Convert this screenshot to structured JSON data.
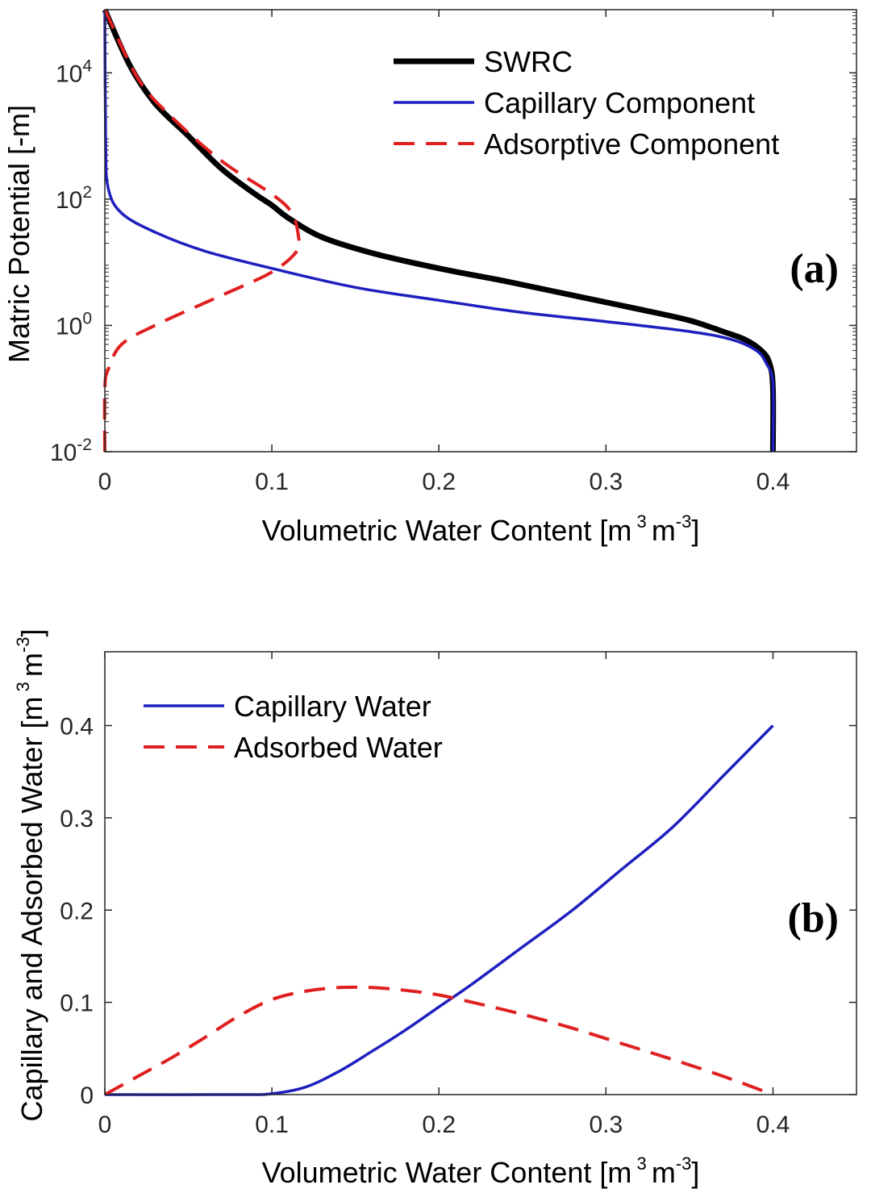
{
  "chart_data": [
    {
      "type": "line",
      "panel_label": "(a)",
      "xlabel": "Volumetric Water Content [m 3 m-3]",
      "ylabel": "Matric Potential [-m]",
      "xlim": [
        0,
        0.45
      ],
      "ylim": [
        0.01,
        100000
      ],
      "yscale": "log",
      "x_ticks": [
        "0",
        "0.1",
        "0.2",
        "0.3",
        "0.4"
      ],
      "y_ticks": [
        {
          "base": "10",
          "exp": "-2",
          "value": 0.01
        },
        {
          "base": "10",
          "exp": "0",
          "value": 1
        },
        {
          "base": "10",
          "exp": "2",
          "value": 100
        },
        {
          "base": "10",
          "exp": "4",
          "value": 10000
        }
      ],
      "legend_position": "top-right",
      "series": [
        {
          "name": "SWRC",
          "color": "#000000",
          "style": "solid",
          "points": [
            [
              0.4,
              0.01
            ],
            [
              0.4,
              0.1
            ],
            [
              0.398,
              0.25
            ],
            [
              0.393,
              0.4
            ],
            [
              0.383,
              0.6
            ],
            [
              0.37,
              0.8
            ],
            [
              0.35,
              1.2
            ],
            [
              0.32,
              1.8
            ],
            [
              0.28,
              3
            ],
            [
              0.24,
              5
            ],
            [
              0.2,
              8
            ],
            [
              0.16,
              14
            ],
            [
              0.13,
              25
            ],
            [
              0.11,
              50
            ],
            [
              0.1,
              80
            ],
            [
              0.09,
              120
            ],
            [
              0.07,
              300
            ],
            [
              0.05,
              1000
            ],
            [
              0.03,
              3300
            ],
            [
              0.015,
              13000
            ],
            [
              0.0,
              100000
            ]
          ]
        },
        {
          "name": "Capillary Component",
          "color": "#1f1fbf",
          "style": "solid",
          "points": [
            [
              0.4,
              0.01
            ],
            [
              0.4,
              0.12
            ],
            [
              0.396,
              0.25
            ],
            [
              0.39,
              0.4
            ],
            [
              0.375,
              0.6
            ],
            [
              0.35,
              0.8
            ],
            [
              0.3,
              1.15
            ],
            [
              0.25,
              1.6
            ],
            [
              0.2,
              2.5
            ],
            [
              0.15,
              4
            ],
            [
              0.1,
              8
            ],
            [
              0.06,
              15
            ],
            [
              0.03,
              30
            ],
            [
              0.01,
              60
            ],
            [
              0.002,
              150
            ],
            [
              0.0005,
              800
            ],
            [
              0.0,
              100000
            ]
          ]
        },
        {
          "name": "Adsorptive Component",
          "color": "#e02020",
          "style": "dashed",
          "points": [
            [
              0.0,
              0.01
            ],
            [
              0.0,
              0.1
            ],
            [
              0.002,
              0.2
            ],
            [
              0.01,
              0.5
            ],
            [
              0.03,
              1.0
            ],
            [
              0.07,
              3
            ],
            [
              0.1,
              7
            ],
            [
              0.115,
              15
            ],
            [
              0.116,
              25
            ],
            [
              0.112,
              60
            ],
            [
              0.1,
              120
            ],
            [
              0.07,
              400
            ],
            [
              0.04,
              2000
            ],
            [
              0.02,
              8000
            ],
            [
              0.0,
              100000
            ]
          ]
        }
      ]
    },
    {
      "type": "line",
      "panel_label": "(b)",
      "xlabel": "Volumetric Water Content [m 3 m-3]",
      "ylabel": "Capillary and Adsorbed Water [m 3 m-3]",
      "xlim": [
        0,
        0.45
      ],
      "ylim": [
        0,
        0.48
      ],
      "x_ticks": [
        "0",
        "0.1",
        "0.2",
        "0.3",
        "0.4"
      ],
      "y_ticks": [
        "0",
        "0.1",
        "0.2",
        "0.3",
        "0.4"
      ],
      "legend_position": "top-left",
      "series": [
        {
          "name": "Capillary Water",
          "color": "#1f1fbf",
          "style": "solid",
          "points": [
            [
              0.0,
              0.0
            ],
            [
              0.08,
              0.0
            ],
            [
              0.1,
              0.001
            ],
            [
              0.12,
              0.008
            ],
            [
              0.14,
              0.025
            ],
            [
              0.16,
              0.047
            ],
            [
              0.18,
              0.07
            ],
            [
              0.2,
              0.095
            ],
            [
              0.22,
              0.12
            ],
            [
              0.25,
              0.16
            ],
            [
              0.28,
              0.2
            ],
            [
              0.31,
              0.245
            ],
            [
              0.34,
              0.29
            ],
            [
              0.37,
              0.345
            ],
            [
              0.4,
              0.4
            ]
          ]
        },
        {
          "name": "Adsorbed Water",
          "color": "#e02020",
          "style": "dashed",
          "points": [
            [
              0.0,
              0.0
            ],
            [
              0.02,
              0.02
            ],
            [
              0.04,
              0.04
            ],
            [
              0.06,
              0.062
            ],
            [
              0.08,
              0.085
            ],
            [
              0.1,
              0.103
            ],
            [
              0.12,
              0.112
            ],
            [
              0.14,
              0.116
            ],
            [
              0.16,
              0.116
            ],
            [
              0.18,
              0.113
            ],
            [
              0.2,
              0.108
            ],
            [
              0.22,
              0.1
            ],
            [
              0.25,
              0.087
            ],
            [
              0.28,
              0.072
            ],
            [
              0.31,
              0.055
            ],
            [
              0.34,
              0.038
            ],
            [
              0.37,
              0.02
            ],
            [
              0.4,
              0.0
            ]
          ]
        }
      ]
    }
  ]
}
